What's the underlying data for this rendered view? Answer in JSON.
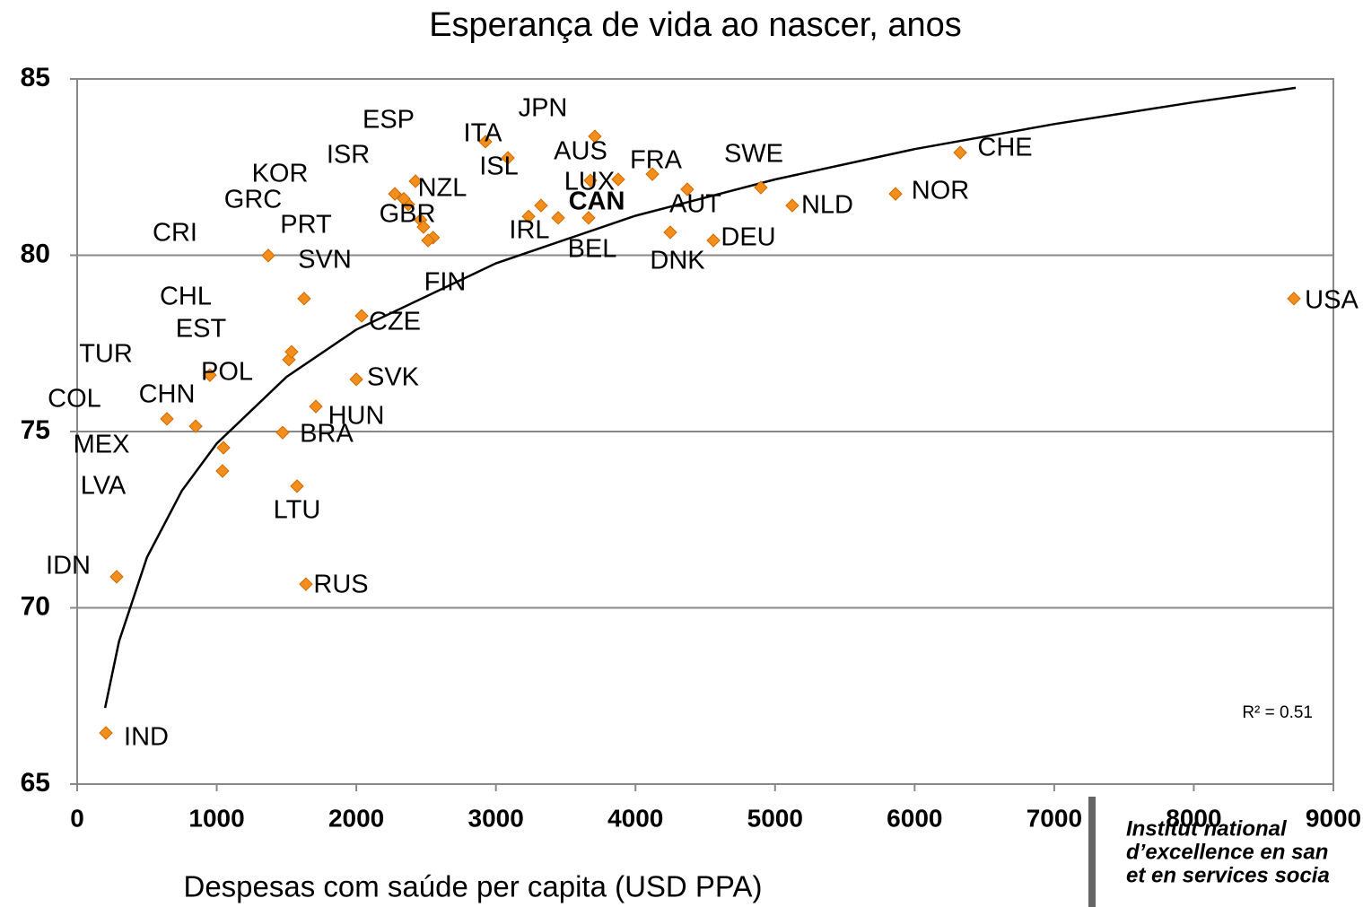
{
  "chart_data": {
    "type": "scatter",
    "title": "Esperança de vida ao  nascer, anos",
    "x_label": "Despesas com saúde per capita (USD PPA)",
    "annotation": "R² = 0.51",
    "logo": [
      "Institut national",
      "d’excellence en san",
      "et en services socia"
    ],
    "xlim": [
      0,
      9000
    ],
    "xticks": [
      0,
      1000,
      2000,
      3000,
      4000,
      5000,
      6000,
      7000,
      8000,
      9000
    ],
    "ylim": [
      65,
      85
    ],
    "yticks": [
      65,
      70,
      75,
      80,
      85
    ],
    "grid": true,
    "color": "#f28e1c",
    "highlight_color": "#e8202a",
    "highlight_index": 33,
    "labels": [
      "IND",
      "IDN",
      "RUS",
      "LTU",
      "LVA",
      "MEX",
      "BRA",
      "HUN",
      "CHN",
      "COL",
      "SVK",
      "TUR",
      "POL",
      "EST",
      "CHL",
      "CRI",
      "SVN",
      "CZE",
      "PRT",
      "GBR",
      "GRC",
      "KOR",
      "NZL",
      "ISR",
      "ESP",
      "FIN",
      "ITA",
      "ISL",
      "JPN",
      "AUS",
      "LUX",
      "IRL",
      "BEL",
      "CAN",
      "FRA",
      "AUT",
      "DNK",
      "DEU",
      "SWE",
      "NLD",
      "NOR",
      "CHE",
      "USA"
    ],
    "x": [
      206,
      283,
      1639,
      1575,
      1041,
      1048,
      1472,
      1710,
      849,
      643,
      2000,
      951,
      1517,
      1536,
      1626,
      1369,
      2550,
      2038,
      2460,
      2372,
      2514,
      2340,
      2481,
      2276,
      2424,
      3234,
      2925,
      3086,
      3709,
      3876,
      3677,
      3446,
      3323,
      4121,
      4371,
      4249,
      4558,
      4898,
      5123,
      5863,
      6326,
      8717,
      3664
    ],
    "y": [
      66.45,
      70.88,
      70.67,
      73.45,
      73.88,
      74.54,
      74.97,
      75.71,
      75.15,
      75.36,
      76.48,
      76.6,
      77.04,
      77.26,
      78.77,
      79.99,
      80.5,
      78.28,
      81.0,
      81.44,
      80.42,
      81.6,
      80.8,
      81.74,
      82.1,
      81.1,
      83.22,
      82.76,
      83.37,
      82.15,
      82.12,
      81.06,
      81.41,
      82.3,
      81.87,
      80.65,
      80.42,
      81.92,
      81.41,
      81.74,
      82.91,
      78.77,
      81.06
    ],
    "trendline": {
      "x": [
        200,
        300,
        500,
        750,
        1000,
        1500,
        2000,
        3000,
        4000,
        5000,
        6000,
        7000,
        8000,
        8730
      ],
      "y": [
        67.16,
        69.05,
        71.43,
        73.32,
        74.66,
        76.55,
        77.89,
        79.77,
        81.12,
        82.15,
        83.01,
        83.72,
        84.34,
        84.75
      ]
    }
  }
}
